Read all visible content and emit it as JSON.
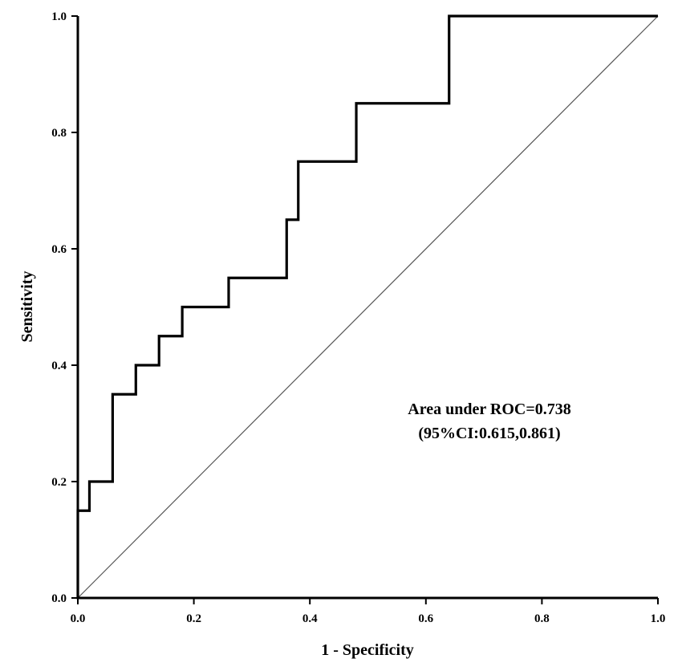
{
  "chart_data": {
    "type": "line",
    "title": "",
    "xlabel": "1 - Specificity",
    "ylabel": "Sensitivity",
    "xlim": [
      0,
      1
    ],
    "ylim": [
      0,
      1
    ],
    "xticks": [
      "0.0",
      "0.2",
      "0.4",
      "0.6",
      "0.8",
      "1.0"
    ],
    "yticks": [
      "0.0",
      "0.2",
      "0.4",
      "0.6",
      "0.8",
      "1.0"
    ],
    "grid": false,
    "legend": "none",
    "series": [
      {
        "x": [
          0,
          0,
          0.02,
          0.02,
          0.06,
          0.06,
          0.1,
          0.1,
          0.14,
          0.14,
          0.18,
          0.18,
          0.26,
          0.26,
          0.36,
          0.36,
          0.38,
          0.38,
          0.48,
          0.48,
          0.64,
          0.64,
          1.0
        ],
        "y": [
          0,
          0.15,
          0.15,
          0.2,
          0.2,
          0.35,
          0.35,
          0.4,
          0.4,
          0.45,
          0.45,
          0.5,
          0.5,
          0.55,
          0.55,
          0.65,
          0.65,
          0.75,
          0.75,
          0.85,
          0.85,
          1.0,
          1.0
        ]
      },
      {
        "x": [
          0,
          1
        ],
        "y": [
          0,
          1
        ]
      }
    ],
    "annotations": [
      "Area under ROC=0.738",
      "(95%CI:0.615,0.861)"
    ]
  }
}
